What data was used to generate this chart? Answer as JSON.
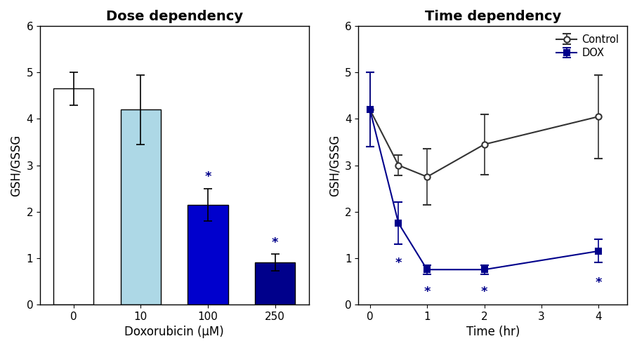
{
  "dose_title": "Dose dependency",
  "dose_xlabel": "Doxorubicin (μM)",
  "dose_ylabel": "GSH/GSSG",
  "dose_categories": [
    "0",
    "10",
    "100",
    "250"
  ],
  "dose_values": [
    4.65,
    4.2,
    2.15,
    0.9
  ],
  "dose_errors": [
    0.35,
    0.75,
    0.35,
    0.18
  ],
  "dose_colors": [
    "#ffffff",
    "#add8e6",
    "#0000cd",
    "#00008b"
  ],
  "dose_edge_colors": [
    "#000000",
    "#000000",
    "#000000",
    "#000000"
  ],
  "dose_sig": [
    false,
    false,
    true,
    true
  ],
  "dose_ylim": [
    0,
    6
  ],
  "dose_yticks": [
    0,
    1,
    2,
    3,
    4,
    5,
    6
  ],
  "time_title": "Time dependency",
  "time_xlabel": "Time (hr)",
  "time_ylabel": "GSH/GSSG",
  "time_xticks": [
    0,
    1,
    2,
    3,
    4
  ],
  "time_ylim": [
    0,
    6
  ],
  "time_yticks": [
    0,
    1,
    2,
    3,
    4,
    5,
    6
  ],
  "control_x": [
    0,
    0.5,
    1,
    2,
    4
  ],
  "control_y": [
    4.2,
    3.0,
    2.75,
    3.45,
    4.05
  ],
  "control_yerr": [
    0.8,
    0.22,
    0.6,
    0.65,
    0.9
  ],
  "control_color": "#333333",
  "control_label": "Control",
  "dox_x": [
    0,
    0.5,
    1,
    2,
    4
  ],
  "dox_y": [
    4.2,
    1.75,
    0.75,
    0.75,
    1.15
  ],
  "dox_yerr": [
    0.8,
    0.45,
    0.1,
    0.1,
    0.25
  ],
  "dox_color": "#00008b",
  "dox_label": "DOX",
  "dox_sig": [
    false,
    true,
    true,
    true,
    true
  ],
  "sig_color": "#00008b",
  "background_color": "#ffffff",
  "title_fontsize": 14,
  "label_fontsize": 12,
  "tick_fontsize": 11
}
